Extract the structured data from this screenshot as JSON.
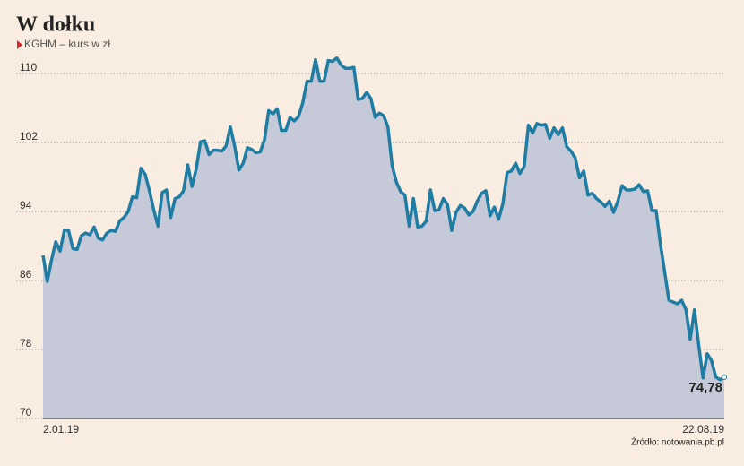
{
  "chart_data": {
    "type": "line",
    "title": "W dołku",
    "subtitle": "KGHM – kurs w zł",
    "source": "Źródło: notowania.pb.pl",
    "categories": [
      "2.01.19",
      null,
      null,
      null,
      null,
      null,
      null,
      null,
      null,
      null,
      null,
      null,
      null,
      null,
      null,
      null,
      null,
      null,
      null,
      null,
      null,
      null,
      null,
      null,
      null,
      null,
      null,
      null,
      null,
      null,
      null,
      null,
      null,
      null,
      null,
      null,
      null,
      null,
      null,
      null,
      null,
      null,
      null,
      null,
      null,
      null,
      null,
      null,
      null,
      null,
      null,
      null,
      null,
      null,
      null,
      null,
      null,
      null,
      null,
      null,
      null,
      null,
      null,
      null,
      null,
      null,
      null,
      null,
      null,
      null,
      null,
      null,
      null,
      null,
      null,
      null,
      null,
      null,
      null,
      null,
      null,
      null,
      null,
      null,
      null,
      null,
      null,
      null,
      null,
      null,
      null,
      null,
      null,
      null,
      null,
      null,
      null,
      null,
      null,
      null,
      null,
      null,
      null,
      null,
      null,
      null,
      null,
      null,
      null,
      null,
      null,
      null,
      null,
      null,
      null,
      null,
      null,
      null,
      null,
      null,
      null,
      null,
      null,
      null,
      null,
      null,
      null,
      null,
      null,
      null,
      null,
      null,
      null,
      null,
      null,
      null,
      null,
      null,
      null,
      null,
      null,
      null,
      null,
      null,
      null,
      null,
      null,
      null,
      null,
      null,
      null,
      null,
      null,
      null,
      null,
      null,
      null,
      null,
      null,
      null,
      "22.08.19"
    ],
    "values": [
      88.9,
      85.9,
      88.4,
      90.5,
      89.4,
      91.8,
      91.8,
      89.7,
      89.6,
      91.2,
      91.5,
      91.3,
      92.2,
      90.9,
      90.7,
      91.5,
      91.8,
      91.7,
      92.9,
      93.3,
      94.0,
      95.7,
      95.6,
      99.0,
      98.3,
      96.4,
      94.2,
      92.3,
      96.2,
      96.5,
      93.3,
      95.5,
      95.7,
      96.4,
      99.4,
      96.9,
      99.0,
      102.1,
      102.2,
      100.6,
      101.1,
      101.1,
      101.0,
      101.6,
      103.8,
      101.6,
      98.8,
      99.6,
      101.4,
      101.2,
      100.8,
      100.9,
      102.3,
      105.7,
      105.3,
      105.9,
      103.4,
      103.4,
      104.9,
      104.5,
      105.0,
      106.6,
      109.1,
      109.1,
      111.6,
      109.1,
      109.1,
      111.5,
      111.4,
      111.8,
      111.0,
      110.6,
      110.6,
      110.7,
      107.0,
      107.1,
      107.8,
      107.1,
      104.9,
      105.4,
      105.1,
      103.8,
      99.3,
      97.4,
      96.3,
      95.9,
      92.3,
      95.5,
      92.2,
      92.3,
      92.9,
      96.5,
      94.1,
      94.2,
      95.5,
      94.8,
      91.8,
      93.9,
      94.7,
      94.4,
      93.6,
      94.0,
      95.2,
      96.1,
      96.4,
      93.5,
      94.5,
      93.1,
      94.9,
      98.5,
      98.7,
      99.6,
      98.4,
      99.2,
      104.0,
      103.1,
      104.2,
      104.0,
      104.1,
      102.5,
      103.7,
      102.9,
      103.7,
      101.5,
      101.0,
      100.2,
      97.9,
      98.7,
      95.9,
      96.1,
      95.5,
      95.1,
      94.6,
      95.2,
      93.9,
      95.2,
      97.0,
      96.5,
      96.5,
      96.6,
      97.1,
      96.3,
      96.4,
      94.1,
      94.1,
      90.2,
      87.0,
      83.7,
      83.5,
      83.3,
      83.7,
      82.6,
      79.2,
      82.6,
      78.5,
      74.7,
      77.5,
      76.7,
      74.8,
      74.5,
      74.78
    ],
    "value_labels": [
      null,
      null,
      null,
      null,
      null,
      null,
      null,
      null,
      null,
      null,
      null,
      null,
      null,
      null,
      null,
      null,
      null,
      null,
      null,
      null,
      null,
      null,
      null,
      null,
      null,
      null,
      null,
      null,
      null,
      null,
      null,
      null,
      null,
      null,
      null,
      null,
      null,
      null,
      null,
      null,
      null,
      null,
      null,
      null,
      null,
      null,
      null,
      null,
      null,
      null,
      null,
      null,
      null,
      null,
      null,
      null,
      null,
      null,
      null,
      null,
      null,
      null,
      null,
      null,
      null,
      null,
      null,
      null,
      null,
      null,
      null,
      null,
      null,
      null,
      null,
      null,
      null,
      null,
      null,
      null,
      null,
      null,
      null,
      null,
      null,
      null,
      null,
      null,
      null,
      null,
      null,
      null,
      null,
      null,
      null,
      null,
      null,
      null,
      null,
      null,
      null,
      null,
      null,
      null,
      null,
      null,
      null,
      null,
      null,
      null,
      null,
      null,
      null,
      null,
      null,
      null,
      null,
      null,
      null,
      null,
      null,
      null,
      null,
      null,
      null,
      null,
      null,
      null,
      null,
      null,
      null,
      null,
      null,
      null,
      null,
      null,
      null,
      null,
      null,
      null,
      null,
      null,
      null,
      null,
      null,
      null,
      null,
      null,
      null,
      null,
      null,
      null,
      null,
      null,
      null,
      null,
      null,
      null,
      null,
      null,
      "74,78"
    ],
    "color": "#1f7ca3",
    "area_color": "#c5c9d8",
    "ylim": [
      70,
      112
    ],
    "yticks": [
      70,
      78,
      86,
      94,
      102,
      110
    ],
    "grid": true
  }
}
